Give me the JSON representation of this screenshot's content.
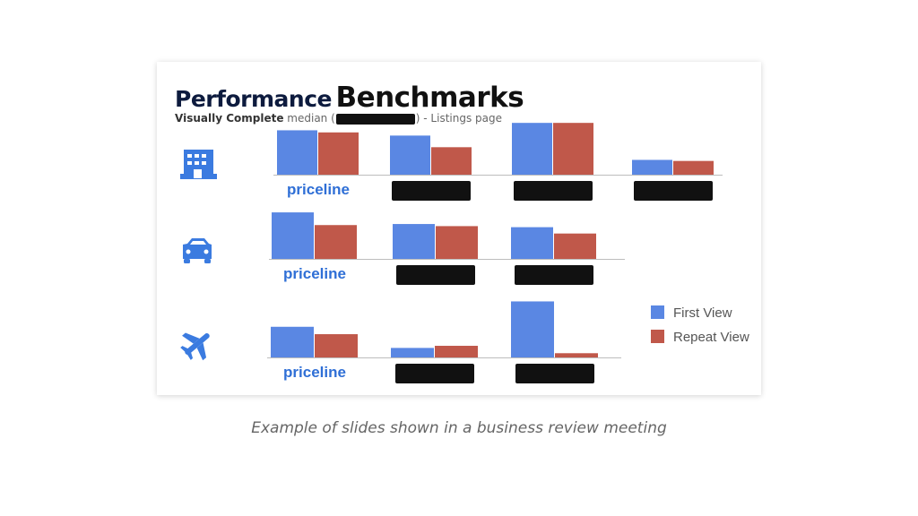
{
  "slide": {
    "title_part1": "Performance",
    "title_part2": "Benchmarks",
    "subtitle_bold": "Visually Complete",
    "subtitle_pre": " median (",
    "subtitle_post": ") - Listings page"
  },
  "caption": "Example of slides shown in a business review meeting",
  "icons": [
    "hotel-icon",
    "car-icon",
    "plane-icon"
  ],
  "colors": {
    "first_view": "#5a87e3",
    "repeat_view": "#c0584a",
    "brand": "#2f6fd6",
    "redaction": "#111111"
  },
  "chart_data": [
    {
      "type": "bar",
      "row": "hotel-icon",
      "categories": [
        "priceline",
        "",
        "",
        ""
      ],
      "series": [
        {
          "name": "First View",
          "values": [
            42,
            37,
            49,
            14
          ]
        },
        {
          "name": "Repeat View",
          "values": [
            40,
            26,
            49,
            13
          ]
        }
      ]
    },
    {
      "type": "bar",
      "row": "car-icon",
      "categories": [
        "priceline",
        "",
        ""
      ],
      "series": [
        {
          "name": "First View",
          "values": [
            44,
            33,
            30
          ]
        },
        {
          "name": "Repeat View",
          "values": [
            32,
            31,
            24
          ]
        }
      ]
    },
    {
      "type": "bar",
      "row": "plane-icon",
      "categories": [
        "priceline",
        "",
        ""
      ],
      "series": [
        {
          "name": "First View",
          "values": [
            29,
            9,
            53
          ]
        },
        {
          "name": "Repeat View",
          "values": [
            22,
            11,
            4
          ]
        }
      ]
    }
  ],
  "legend": [
    {
      "label": "First View",
      "color": "#5a87e3"
    },
    {
      "label": "Repeat View",
      "color": "#c0584a"
    }
  ]
}
